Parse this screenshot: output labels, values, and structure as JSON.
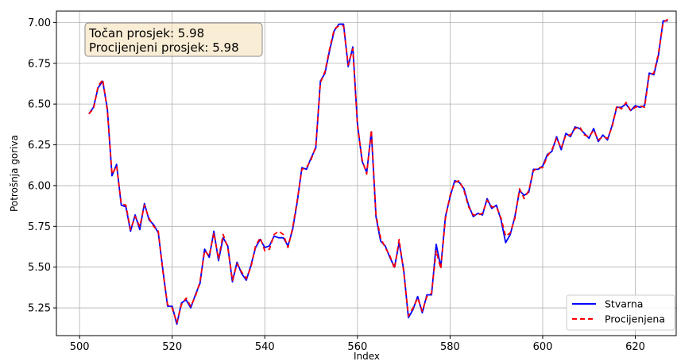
{
  "chart_data": {
    "type": "line",
    "title": "",
    "xlabel": "Index",
    "ylabel": "Potrošnja goriva",
    "xlim": [
      495,
      629
    ],
    "ylim": [
      5.08,
      7.07
    ],
    "xticks": [
      500,
      520,
      540,
      560,
      580,
      600,
      620
    ],
    "yticks": [
      5.25,
      5.5,
      5.75,
      6.0,
      6.25,
      6.5,
      6.75,
      7.0
    ],
    "xtick_labels": [
      "500",
      "520",
      "540",
      "560",
      "580",
      "600",
      "620"
    ],
    "ytick_labels": [
      "5.25",
      "5.50",
      "5.75",
      "6.00",
      "6.25",
      "6.50",
      "6.75",
      "7.00"
    ],
    "grid": true,
    "legend_position": "bottom-right",
    "annotation": {
      "line1": "Točan prosjek: 5.98",
      "line2": "Procijenjeni prosjek: 5.98"
    },
    "x": [
      502,
      503,
      504,
      505,
      506,
      507,
      508,
      509,
      510,
      511,
      512,
      513,
      514,
      515,
      516,
      517,
      518,
      519,
      520,
      521,
      522,
      523,
      524,
      525,
      526,
      527,
      528,
      529,
      530,
      531,
      532,
      533,
      534,
      535,
      536,
      537,
      538,
      539,
      540,
      541,
      542,
      543,
      544,
      545,
      546,
      547,
      548,
      549,
      550,
      551,
      552,
      553,
      554,
      555,
      556,
      557,
      558,
      559,
      560,
      561,
      562,
      563,
      564,
      565,
      566,
      567,
      568,
      569,
      570,
      571,
      572,
      573,
      574,
      575,
      576,
      577,
      578,
      579,
      580,
      581,
      582,
      583,
      584,
      585,
      586,
      587,
      588,
      589,
      590,
      591,
      592,
      593,
      594,
      595,
      596,
      597,
      598,
      599,
      600,
      601,
      602,
      603,
      604,
      605,
      606,
      607,
      608,
      609,
      610,
      611,
      612,
      613,
      614,
      615,
      616,
      617,
      618,
      619,
      620,
      621,
      622,
      623,
      624,
      625,
      626,
      627
    ],
    "series": [
      {
        "name": "Stvarna",
        "color": "#0000ff",
        "style": "solid",
        "values": [
          6.44,
          6.48,
          6.6,
          6.64,
          6.47,
          6.06,
          6.13,
          5.88,
          5.87,
          5.72,
          5.82,
          5.73,
          5.89,
          5.79,
          5.76,
          5.71,
          5.48,
          5.26,
          5.26,
          5.15,
          5.28,
          5.3,
          5.25,
          5.33,
          5.4,
          5.61,
          5.56,
          5.72,
          5.54,
          5.68,
          5.63,
          5.41,
          5.53,
          5.46,
          5.42,
          5.51,
          5.62,
          5.67,
          5.62,
          5.63,
          5.69,
          5.68,
          5.68,
          5.63,
          5.73,
          5.9,
          6.11,
          6.1,
          6.17,
          6.23,
          6.64,
          6.69,
          6.83,
          6.95,
          6.99,
          6.99,
          6.73,
          6.85,
          6.38,
          6.15,
          6.08,
          6.33,
          5.81,
          5.66,
          5.63,
          5.56,
          5.5,
          5.65,
          5.48,
          5.19,
          5.24,
          5.32,
          5.22,
          5.33,
          5.33,
          5.64,
          5.5,
          5.81,
          5.93,
          6.03,
          6.02,
          5.98,
          5.88,
          5.81,
          5.83,
          5.82,
          5.92,
          5.86,
          5.88,
          5.79,
          5.65,
          5.7,
          5.81,
          5.97,
          5.94,
          5.96,
          6.1,
          6.1,
          6.12,
          6.19,
          6.21,
          6.3,
          6.22,
          6.32,
          6.3,
          6.36,
          6.35,
          6.32,
          6.29,
          6.35,
          6.27,
          6.31,
          6.28,
          6.37,
          6.48,
          6.48,
          6.5,
          6.46,
          6.49,
          6.48,
          6.49,
          6.69,
          6.68,
          6.8,
          7.01,
          7.01
        ]
      },
      {
        "name": "Procijenjena",
        "color": "#ff0000",
        "style": "dashed",
        "values": [
          6.44,
          6.47,
          6.61,
          6.65,
          6.46,
          6.07,
          6.12,
          5.89,
          5.88,
          5.73,
          5.81,
          5.75,
          5.88,
          5.8,
          5.75,
          5.72,
          5.47,
          5.27,
          5.25,
          5.16,
          5.27,
          5.31,
          5.26,
          5.32,
          5.41,
          5.6,
          5.57,
          5.71,
          5.55,
          5.7,
          5.62,
          5.42,
          5.52,
          5.47,
          5.43,
          5.5,
          5.63,
          5.68,
          5.6,
          5.61,
          5.7,
          5.72,
          5.7,
          5.62,
          5.74,
          5.91,
          6.1,
          6.11,
          6.16,
          6.24,
          6.63,
          6.7,
          6.84,
          6.96,
          6.98,
          6.98,
          6.74,
          6.84,
          6.37,
          6.16,
          6.07,
          6.34,
          5.82,
          5.68,
          5.62,
          5.57,
          5.49,
          5.67,
          5.47,
          5.2,
          5.25,
          5.31,
          5.23,
          5.32,
          5.34,
          5.6,
          5.49,
          5.8,
          5.94,
          6.02,
          6.03,
          5.97,
          5.87,
          5.82,
          5.82,
          5.83,
          5.91,
          5.87,
          5.87,
          5.8,
          5.69,
          5.71,
          5.8,
          5.98,
          5.92,
          5.97,
          6.09,
          6.11,
          6.11,
          6.18,
          6.22,
          6.29,
          6.23,
          6.31,
          6.31,
          6.35,
          6.36,
          6.31,
          6.3,
          6.34,
          6.28,
          6.3,
          6.29,
          6.36,
          6.49,
          6.47,
          6.51,
          6.46,
          6.48,
          6.49,
          6.48,
          6.68,
          6.69,
          6.81,
          7.0,
          7.02
        ]
      }
    ]
  }
}
